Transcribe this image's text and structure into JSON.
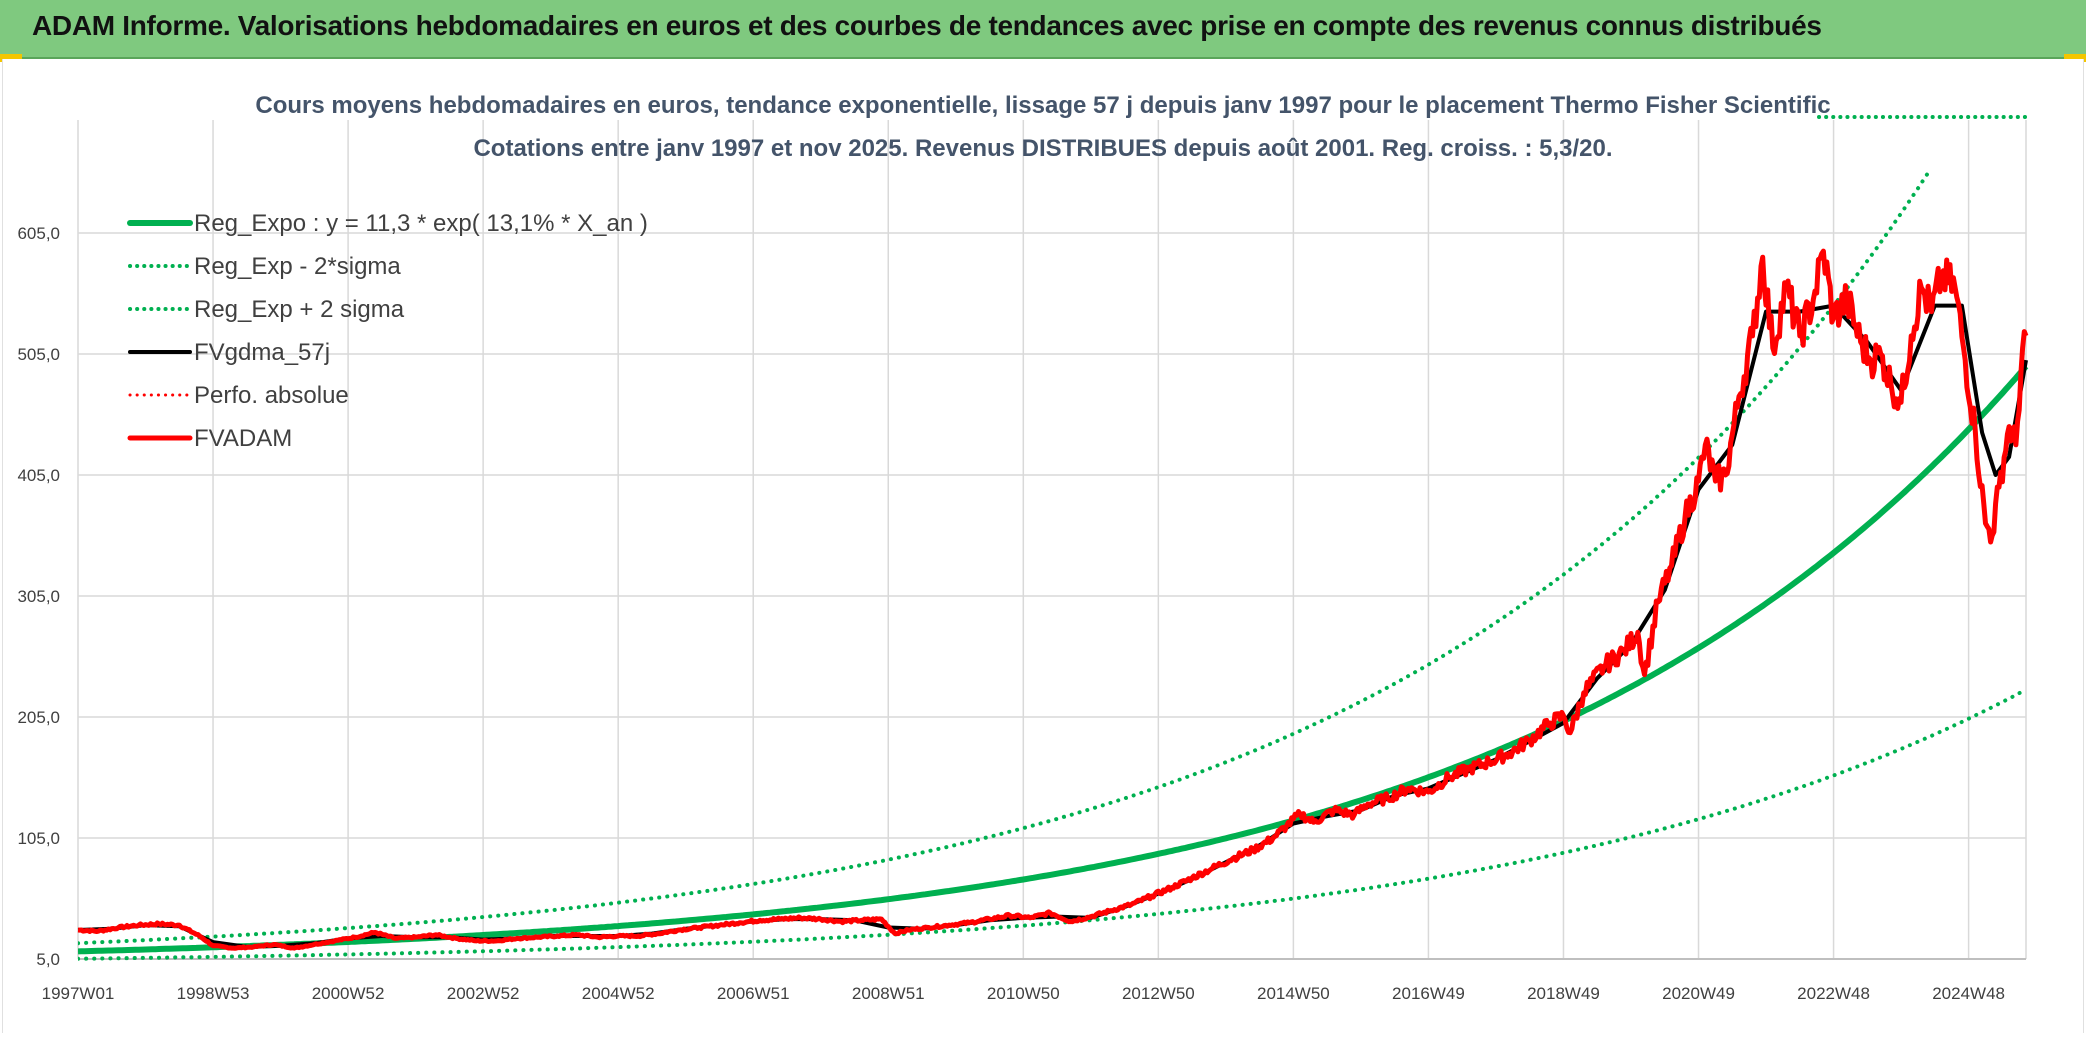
{
  "header": {
    "title": "ADAM Informe. Valorisations hebdomadaires en euros et des courbes de tendances avec prise en compte des revenus connus distribués"
  },
  "colors": {
    "banner": "#7fc97f",
    "trend": "#00b050",
    "smooth": "#000000",
    "price": "#ff0000",
    "grid": "#d9d9d9"
  },
  "chart_data": {
    "type": "line",
    "title": "Cours moyens hebdomadaires en euros, tendance exponentielle, lissage 57 j depuis janv 1997 pour le placement Thermo Fisher Scientific",
    "subtitle": "Cotations entre janv 1997 et nov 2025. Revenus DISTRIBUES depuis août 2001. Reg. croiss. : 5,3/20.",
    "xlabel": "",
    "ylabel": "",
    "ylim": [
      5,
      665
    ],
    "xlim": [
      1997.0,
      2025.85
    ],
    "yticks": [
      "605,0",
      "505,0",
      "405,0",
      "305,0",
      "205,0",
      "105,0",
      "5,0"
    ],
    "ytick_values": [
      605,
      505,
      405,
      305,
      205,
      105,
      5
    ],
    "xticks": [
      "1997W01",
      "1998W53",
      "2000W52",
      "2002W52",
      "2004W52",
      "2006W51",
      "2008W51",
      "2010W50",
      "2012W50",
      "2014W50",
      "2016W49",
      "2018W49",
      "2020W49",
      "2022W48",
      "2024W48"
    ],
    "xtick_values": [
      1997.0,
      1999.0,
      2001.0,
      2003.0,
      2005.0,
      2007.0,
      2009.0,
      2011.0,
      2013.0,
      2015.0,
      2017.0,
      2019.0,
      2021.0,
      2023.0,
      2025.0
    ],
    "legend": {
      "position": "top-left",
      "entries": [
        {
          "label": "Reg_Expo : y = 11,3 * exp( 13,1% *  X_an )",
          "color": "#00b050",
          "style": "solid",
          "width": 6
        },
        {
          "label": "Reg_Exp - 2*sigma",
          "color": "#00b050",
          "style": "dotted",
          "width": 4
        },
        {
          "label": "Reg_Exp + 2 sigma",
          "color": "#00b050",
          "style": "dotted",
          "width": 4
        },
        {
          "label": "FVgdma_57j",
          "color": "#000000",
          "style": "solid",
          "width": 4
        },
        {
          "label": "Perfo. absolue",
          "color": "#ff0000",
          "style": "dotted",
          "width": 3
        },
        {
          "label": "FVADAM",
          "color": "#ff0000",
          "style": "solid",
          "width": 5
        }
      ]
    },
    "regression": {
      "a": 11.3,
      "rate": 0.131,
      "x0": 1997.0,
      "lower_factor": 0.46,
      "upper_factor": 1.6
    },
    "series": [
      {
        "name": "FVADAM",
        "points": [
          [
            1997.0,
            29
          ],
          [
            1997.3,
            28
          ],
          [
            1997.6,
            31
          ],
          [
            1997.9,
            33
          ],
          [
            1998.2,
            34
          ],
          [
            1998.5,
            33
          ],
          [
            1998.8,
            24
          ],
          [
            1999.0,
            16
          ],
          [
            1999.3,
            14
          ],
          [
            1999.6,
            15
          ],
          [
            1999.9,
            17
          ],
          [
            2000.2,
            14
          ],
          [
            2000.5,
            17
          ],
          [
            2000.8,
            20
          ],
          [
            2001.1,
            23
          ],
          [
            2001.4,
            27
          ],
          [
            2001.7,
            22
          ],
          [
            2002.0,
            23
          ],
          [
            2002.3,
            25
          ],
          [
            2002.6,
            22
          ],
          [
            2002.9,
            20
          ],
          [
            2003.2,
            20
          ],
          [
            2003.5,
            22
          ],
          [
            2003.8,
            23
          ],
          [
            2004.1,
            24
          ],
          [
            2004.4,
            25
          ],
          [
            2004.7,
            23
          ],
          [
            2005.0,
            24
          ],
          [
            2005.3,
            24
          ],
          [
            2005.6,
            26
          ],
          [
            2005.9,
            29
          ],
          [
            2006.2,
            31
          ],
          [
            2006.5,
            33
          ],
          [
            2006.8,
            35
          ],
          [
            2007.1,
            37
          ],
          [
            2007.4,
            38
          ],
          [
            2007.7,
            39
          ],
          [
            2008.0,
            38
          ],
          [
            2008.3,
            36
          ],
          [
            2008.6,
            37
          ],
          [
            2008.9,
            38
          ],
          [
            2009.1,
            26
          ],
          [
            2009.3,
            29
          ],
          [
            2009.6,
            31
          ],
          [
            2009.9,
            33
          ],
          [
            2010.2,
            35
          ],
          [
            2010.5,
            38
          ],
          [
            2010.8,
            41
          ],
          [
            2011.1,
            39
          ],
          [
            2011.4,
            43
          ],
          [
            2011.7,
            36
          ],
          [
            2012.0,
            40
          ],
          [
            2012.3,
            45
          ],
          [
            2012.6,
            50
          ],
          [
            2012.9,
            57
          ],
          [
            2013.2,
            64
          ],
          [
            2013.5,
            72
          ],
          [
            2013.8,
            80
          ],
          [
            2014.1,
            88
          ],
          [
            2014.4,
            95
          ],
          [
            2014.7,
            105
          ],
          [
            2014.9,
            115
          ],
          [
            2015.1,
            125
          ],
          [
            2015.3,
            118
          ],
          [
            2015.6,
            128
          ],
          [
            2015.9,
            124
          ],
          [
            2016.1,
            133
          ],
          [
            2016.4,
            138
          ],
          [
            2016.7,
            146
          ],
          [
            2017.0,
            143
          ],
          [
            2017.3,
            155
          ],
          [
            2017.6,
            162
          ],
          [
            2017.9,
            168
          ],
          [
            2018.2,
            175
          ],
          [
            2018.5,
            186
          ],
          [
            2018.8,
            200
          ],
          [
            2019.0,
            206
          ],
          [
            2019.1,
            192
          ],
          [
            2019.3,
            225
          ],
          [
            2019.6,
            247
          ],
          [
            2019.9,
            260
          ],
          [
            2020.1,
            275
          ],
          [
            2020.2,
            240
          ],
          [
            2020.4,
            300
          ],
          [
            2020.6,
            330
          ],
          [
            2020.8,
            370
          ],
          [
            2021.0,
            400
          ],
          [
            2021.1,
            430
          ],
          [
            2021.25,
            400
          ],
          [
            2021.4,
            405
          ],
          [
            2021.6,
            470
          ],
          [
            2021.8,
            520
          ],
          [
            2021.95,
            585
          ],
          [
            2022.1,
            510
          ],
          [
            2022.3,
            560
          ],
          [
            2022.5,
            520
          ],
          [
            2022.7,
            550
          ],
          [
            2022.85,
            590
          ],
          [
            2023.0,
            535
          ],
          [
            2023.2,
            550
          ],
          [
            2023.4,
            515
          ],
          [
            2023.55,
            500
          ],
          [
            2023.7,
            505
          ],
          [
            2023.85,
            480
          ],
          [
            2024.0,
            465
          ],
          [
            2024.15,
            520
          ],
          [
            2024.3,
            560
          ],
          [
            2024.45,
            540
          ],
          [
            2024.6,
            570
          ],
          [
            2024.8,
            560
          ],
          [
            2024.95,
            500
          ],
          [
            2025.1,
            440
          ],
          [
            2025.25,
            365
          ],
          [
            2025.35,
            355
          ],
          [
            2025.45,
            395
          ],
          [
            2025.6,
            445
          ],
          [
            2025.7,
            430
          ],
          [
            2025.8,
            510
          ],
          [
            2025.85,
            520
          ]
        ]
      },
      {
        "name": "FVgdma_57j",
        "points": [
          [
            1997.0,
            29
          ],
          [
            1997.5,
            30
          ],
          [
            1998.0,
            33
          ],
          [
            1998.5,
            32
          ],
          [
            1999.0,
            19
          ],
          [
            1999.5,
            15
          ],
          [
            2000.0,
            16
          ],
          [
            2000.5,
            18
          ],
          [
            2001.0,
            22
          ],
          [
            2001.5,
            24
          ],
          [
            2002.0,
            23
          ],
          [
            2002.5,
            23
          ],
          [
            2003.0,
            21
          ],
          [
            2003.5,
            22
          ],
          [
            2004.0,
            24
          ],
          [
            2004.5,
            24
          ],
          [
            2005.0,
            24
          ],
          [
            2005.5,
            26
          ],
          [
            2006.0,
            30
          ],
          [
            2006.5,
            33
          ],
          [
            2007.0,
            36
          ],
          [
            2007.5,
            38
          ],
          [
            2008.0,
            38
          ],
          [
            2008.5,
            37
          ],
          [
            2009.0,
            31
          ],
          [
            2009.5,
            30
          ],
          [
            2010.0,
            33
          ],
          [
            2010.5,
            37
          ],
          [
            2011.0,
            39
          ],
          [
            2011.5,
            40
          ],
          [
            2012.0,
            39
          ],
          [
            2012.5,
            48
          ],
          [
            2013.0,
            59
          ],
          [
            2013.5,
            71
          ],
          [
            2014.0,
            85
          ],
          [
            2014.5,
            99
          ],
          [
            2015.0,
            117
          ],
          [
            2015.5,
            123
          ],
          [
            2016.0,
            128
          ],
          [
            2016.5,
            140
          ],
          [
            2017.0,
            146
          ],
          [
            2017.5,
            158
          ],
          [
            2018.0,
            170
          ],
          [
            2018.5,
            185
          ],
          [
            2019.0,
            200
          ],
          [
            2019.5,
            237
          ],
          [
            2020.0,
            265
          ],
          [
            2020.5,
            310
          ],
          [
            2021.0,
            393
          ],
          [
            2021.5,
            430
          ],
          [
            2022.0,
            540
          ],
          [
            2022.5,
            540
          ],
          [
            2023.0,
            545
          ],
          [
            2023.5,
            515
          ],
          [
            2024.0,
            475
          ],
          [
            2024.5,
            545
          ],
          [
            2024.9,
            545
          ],
          [
            2025.2,
            440
          ],
          [
            2025.4,
            405
          ],
          [
            2025.6,
            420
          ],
          [
            2025.85,
            500
          ]
        ]
      }
    ]
  }
}
